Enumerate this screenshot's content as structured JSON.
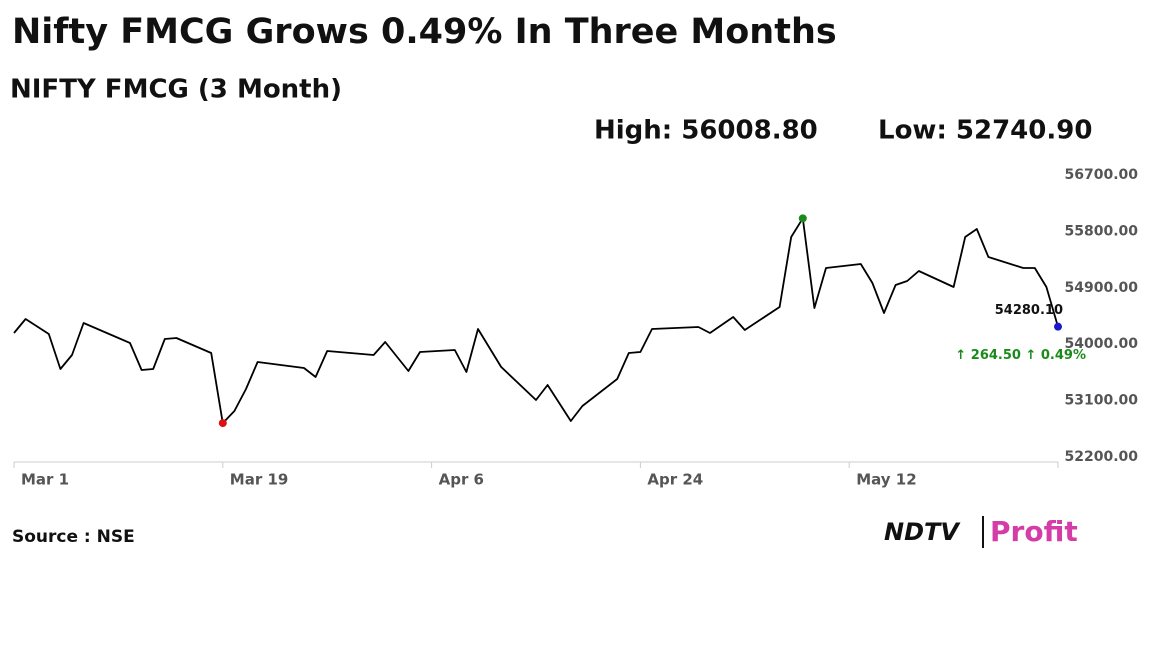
{
  "chart_data": {
    "type": "line",
    "title": "Nifty FMCG Grows 0.49% In Three Months",
    "subtitle": "NIFTY FMCG (3 Month)",
    "high_label": "High: 56008.80",
    "low_label": "Low: 52740.90",
    "source": "Source : NSE",
    "logo": {
      "brand": "NDTV",
      "product": "Profit"
    },
    "change_label": "↑ 264.50 ↑ 0.49%",
    "x": [
      "Mar 1",
      "Mar 2",
      "Mar 4",
      "Mar 5",
      "Mar 6",
      "Mar 7",
      "Mar 11",
      "Mar 12",
      "Mar 13",
      "Mar 14",
      "Mar 15",
      "Mar 18",
      "Mar 19",
      "Mar 20",
      "Mar 21",
      "Mar 22",
      "Mar 26",
      "Mar 27",
      "Mar 28",
      "Apr 1",
      "Apr 2",
      "Apr 4",
      "Apr 5",
      "Apr 8",
      "Apr 9",
      "Apr 10",
      "Apr 12",
      "Apr 15",
      "Apr 16",
      "Apr 18",
      "Apr 19",
      "Apr 22",
      "Apr 23",
      "Apr 24",
      "Apr 25",
      "Apr 29",
      "Apr 30",
      "May 2",
      "May 3",
      "May 6",
      "May 7",
      "May 8",
      "May 9",
      "May 10",
      "May 13",
      "May 14",
      "May 15",
      "May 16",
      "May 17",
      "May 18",
      "May 21",
      "May 22",
      "May 23",
      "May 24",
      "May 27",
      "May 28",
      "May 29",
      "May 30"
    ],
    "values": [
      54179,
      54402,
      54163,
      53604,
      53828,
      54339,
      54019,
      53589,
      53604,
      54083,
      54099,
      53860,
      52740.9,
      52934,
      53285,
      53716,
      53620,
      53477,
      53892,
      53828,
      54035,
      53573,
      53876,
      53908,
      53557,
      54243,
      53636,
      53110,
      53349,
      52775,
      53014,
      53445,
      53860,
      53876,
      54243,
      54275,
      54179,
      54434,
      54227,
      54594,
      55711,
      56008.8,
      54578,
      55216,
      55280,
      54977,
      54498,
      54945,
      55009,
      55169,
      54913,
      55711,
      55839,
      55392,
      55216,
      55216,
      54913,
      54280.1
    ],
    "value_labels": [
      null,
      null,
      null,
      null,
      null,
      null,
      null,
      null,
      null,
      null,
      null,
      null,
      null,
      null,
      null,
      null,
      null,
      null,
      null,
      null,
      null,
      null,
      null,
      null,
      null,
      null,
      null,
      null,
      null,
      null,
      null,
      null,
      null,
      null,
      null,
      null,
      null,
      null,
      null,
      null,
      null,
      null,
      null,
      null,
      null,
      null,
      null,
      null,
      null,
      null,
      null,
      null,
      null,
      null,
      null,
      null,
      null,
      "54280.10"
    ],
    "color": "#000000",
    "high_color": "#1a8a1a",
    "low_color": "#e01010",
    "last_color": "#1a1acc",
    "change_color": "#1a8a1a",
    "xlim": [
      "Mar 1",
      "May 30"
    ],
    "xticks": [
      "Mar 1",
      "Mar 19",
      "Apr 6",
      "Apr 24",
      "May 12"
    ],
    "ylim": [
      52120,
      56940
    ],
    "yticks": [
      {
        "value": 52200,
        "label": "52200.00"
      },
      {
        "value": 53100,
        "label": "53100.00"
      },
      {
        "value": 54000,
        "label": "54000.00"
      },
      {
        "value": 54900,
        "label": "54900.00"
      },
      {
        "value": 55800,
        "label": "55800.00"
      },
      {
        "value": 56700,
        "label": "56700.00"
      }
    ]
  }
}
